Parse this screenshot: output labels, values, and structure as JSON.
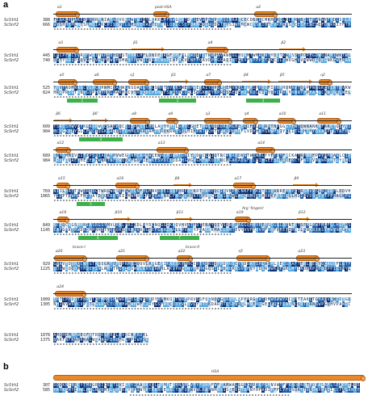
{
  "panels": [
    "a",
    "b"
  ],
  "seq1": "ScSth1",
  "seq2": "ScSnf2",
  "blocks": [
    {
      "n1": "388",
      "n2": "666",
      "ss": [
        "α1",
        "post-HSA",
        "α2"
      ],
      "green": []
    },
    {
      "n1": "445",
      "n2": "740",
      "ss": [
        "α3",
        "β1",
        "α4",
        "β2"
      ],
      "green": []
    },
    {
      "n1": "525",
      "n2": "824",
      "ss": [
        "α5",
        "α6",
        "η1",
        "β3",
        "α7",
        "β4",
        "β5",
        "η2"
      ],
      "green": [
        "1",
        "2",
        "3"
      ]
    },
    {
      "n1": "609",
      "n2": "904",
      "ss": [
        "β6",
        "β6'",
        "α8",
        "α9",
        "η3",
        "η4",
        "α10",
        "α11"
      ],
      "green": [
        "4"
      ]
    },
    {
      "n1": "689",
      "n2": "984",
      "ss": [
        "α12",
        "α13",
        "α14"
      ],
      "green": []
    },
    {
      "n1": "769",
      "n2": "1065",
      "ss": [
        "α15",
        "α16",
        "β8",
        "α17",
        "β9"
      ],
      "green": [
        "5"
      ]
    },
    {
      "n1": "849",
      "n2": "1145",
      "ss": [
        "α18",
        "β10",
        "β11",
        "α19",
        "β12"
      ],
      "green": [
        "6",
        "7"
      ],
      "extra": "Arg 'fingers'"
    },
    {
      "n1": "929",
      "n2": "1225",
      "ss": [
        "α20",
        "α21",
        "α22",
        "η5",
        "α23"
      ],
      "green": [],
      "extra2": [
        "brace-I",
        "brace-II"
      ]
    },
    {
      "n1": "1009",
      "n2": "1305",
      "ss": [
        "α24"
      ],
      "green": []
    },
    {
      "n1": "1078",
      "n2": "1375",
      "ss": [],
      "green": []
    }
  ],
  "block_b": {
    "n1": "307",
    "n2": "585",
    "ss": [
      "HSA"
    ]
  }
}
